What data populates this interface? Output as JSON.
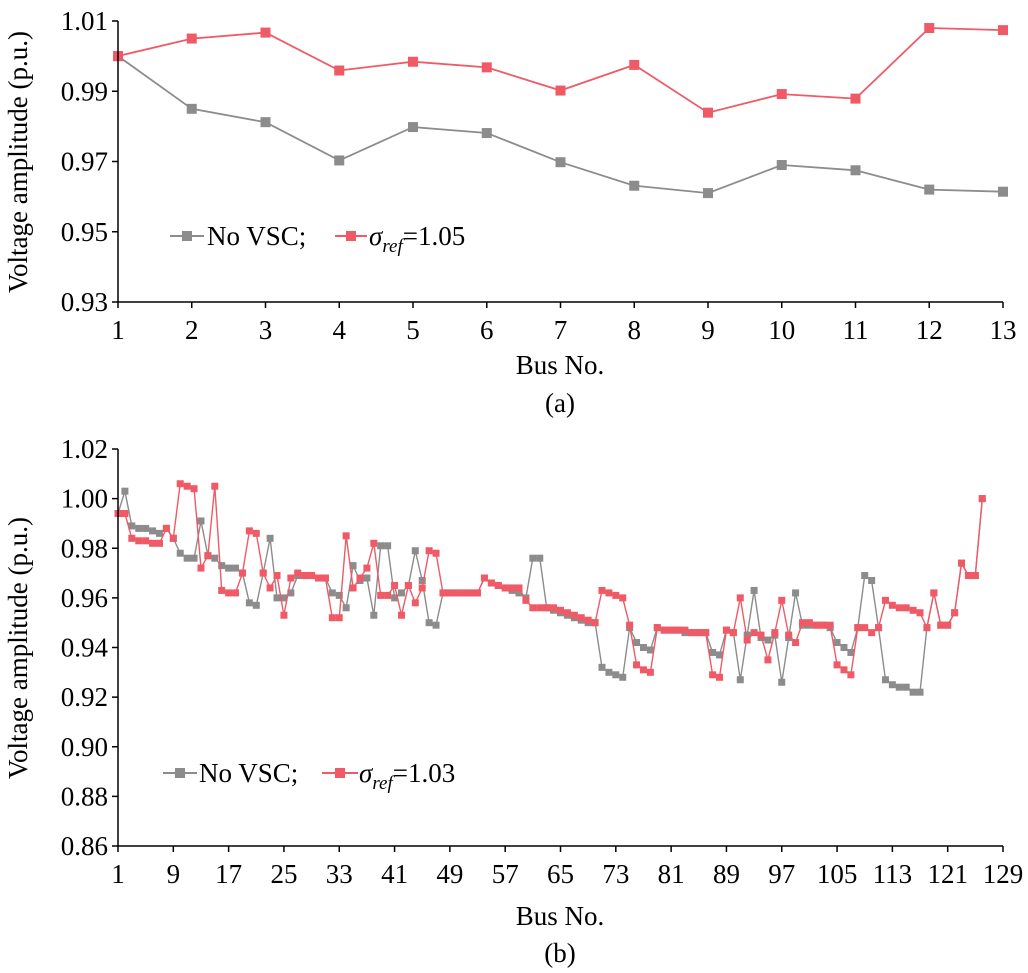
{
  "chart_data": [
    {
      "type": "line",
      "xlabel": "Bus No.",
      "ylabel": "Voltage amplitude (p.u.)",
      "caption": "(a)",
      "ylim": [
        0.93,
        1.01
      ],
      "yticks": [
        "0.93",
        "0.95",
        "0.97",
        "0.99",
        "1.01"
      ],
      "x": [
        1,
        2,
        3,
        4,
        5,
        6,
        7,
        8,
        9,
        10,
        11,
        12,
        13
      ],
      "xticks": [
        "1",
        "2",
        "3",
        "4",
        "5",
        "6",
        "7",
        "8",
        "9",
        "10",
        "11",
        "12",
        "13"
      ],
      "legend_placement": "lower-left",
      "series": [
        {
          "name": "No VSC;",
          "color": "#8c8c8c",
          "values": [
            1.0,
            0.985,
            0.9812,
            0.9703,
            0.9798,
            0.9781,
            0.9698,
            0.9631,
            0.961,
            0.969,
            0.9675,
            0.962,
            0.9614
          ]
        },
        {
          "name_base": "σ",
          "name_sub": "ref",
          "name_tail": "=1.05",
          "color": "#ef5a66",
          "values": [
            1.0,
            1.005,
            1.0067,
            0.9959,
            0.9984,
            0.9968,
            0.9902,
            0.9975,
            0.9839,
            0.9892,
            0.9879,
            1.008,
            1.0074
          ]
        }
      ]
    },
    {
      "type": "line",
      "xlabel": "Bus No.",
      "ylabel": "Voltage amplitude (p.u.)",
      "caption": "(b)",
      "ylim": [
        0.86,
        1.02
      ],
      "yticks": [
        "0.86",
        "0.88",
        "0.90",
        "0.92",
        "0.94",
        "0.96",
        "0.98",
        "1.00",
        "1.02"
      ],
      "xlim": [
        1,
        129
      ],
      "xticks": [
        "1",
        "9",
        "17",
        "25",
        "33",
        "41",
        "49",
        "57",
        "65",
        "73",
        "81",
        "89",
        "97",
        "105",
        "113",
        "121",
        "129"
      ],
      "legend_placement": "lower-left",
      "series": [
        {
          "name": "No VSC;",
          "color": "#8c8c8c",
          "values": [
            0.994,
            1.003,
            0.989,
            0.988,
            0.988,
            0.987,
            0.986,
            0.988,
            0.984,
            0.978,
            0.976,
            0.976,
            0.991,
            0.977,
            0.976,
            0.973,
            0.972,
            0.972,
            0.97,
            0.958,
            0.957,
            0.97,
            0.984,
            0.96,
            0.96,
            0.962,
            0.969,
            0.969,
            0.969,
            0.968,
            0.968,
            0.962,
            0.961,
            0.956,
            0.973,
            0.967,
            0.968,
            0.953,
            0.981,
            0.981,
            0.96,
            0.962,
            0.965,
            0.979,
            0.967,
            0.95,
            0.949,
            0.962,
            0.962,
            0.962,
            0.962,
            0.962,
            0.962,
            0.968,
            0.966,
            0.965,
            0.964,
            0.963,
            0.962,
            0.96,
            0.976,
            0.976,
            0.956,
            0.955,
            0.954,
            0.953,
            0.952,
            0.951,
            0.95,
            0.95,
            0.932,
            0.93,
            0.929,
            0.928,
            0.948,
            0.942,
            0.94,
            0.939,
            0.948,
            0.947,
            0.947,
            0.947,
            0.946,
            0.946,
            0.946,
            0.946,
            0.938,
            0.937,
            0.947,
            0.946,
            0.927,
            0.945,
            0.963,
            0.944,
            0.943,
            0.945,
            0.926,
            0.944,
            0.962,
            0.949,
            0.949,
            0.949,
            0.949,
            0.948,
            0.942,
            0.94,
            0.938,
            0.948,
            0.969,
            0.967,
            0.948,
            0.927,
            0.925,
            0.924,
            0.924,
            0.922,
            0.922,
            0.948,
            0.962,
            0.949,
            0.949,
            0.954,
            0.974,
            0.969,
            0.969,
            1.0
          ]
        },
        {
          "name_base": "σ",
          "name_sub": "ref",
          "name_tail": "=1.03",
          "color": "#ef5a66",
          "values": [
            0.994,
            0.994,
            0.984,
            0.983,
            0.983,
            0.982,
            0.982,
            0.988,
            0.984,
            1.006,
            1.005,
            1.004,
            0.972,
            0.977,
            1.005,
            0.963,
            0.962,
            0.962,
            0.97,
            0.987,
            0.986,
            0.97,
            0.964,
            0.969,
            0.953,
            0.968,
            0.97,
            0.969,
            0.969,
            0.968,
            0.968,
            0.952,
            0.952,
            0.985,
            0.964,
            0.968,
            0.972,
            0.982,
            0.961,
            0.961,
            0.965,
            0.953,
            0.965,
            0.958,
            0.964,
            0.979,
            0.978,
            0.962,
            0.962,
            0.962,
            0.962,
            0.962,
            0.962,
            0.968,
            0.966,
            0.965,
            0.964,
            0.964,
            0.964,
            0.959,
            0.956,
            0.956,
            0.956,
            0.956,
            0.955,
            0.954,
            0.953,
            0.952,
            0.951,
            0.95,
            0.963,
            0.962,
            0.961,
            0.96,
            0.949,
            0.933,
            0.931,
            0.93,
            0.948,
            0.947,
            0.947,
            0.947,
            0.947,
            0.946,
            0.946,
            0.946,
            0.929,
            0.928,
            0.947,
            0.946,
            0.96,
            0.943,
            0.946,
            0.945,
            0.935,
            0.946,
            0.959,
            0.945,
            0.942,
            0.95,
            0.95,
            0.949,
            0.949,
            0.949,
            0.933,
            0.931,
            0.929,
            0.948,
            0.948,
            0.946,
            0.948,
            0.959,
            0.957,
            0.956,
            0.956,
            0.955,
            0.954,
            0.948,
            0.962,
            0.949,
            0.949,
            0.954,
            0.974,
            0.969,
            0.969,
            1.0
          ]
        }
      ]
    }
  ]
}
